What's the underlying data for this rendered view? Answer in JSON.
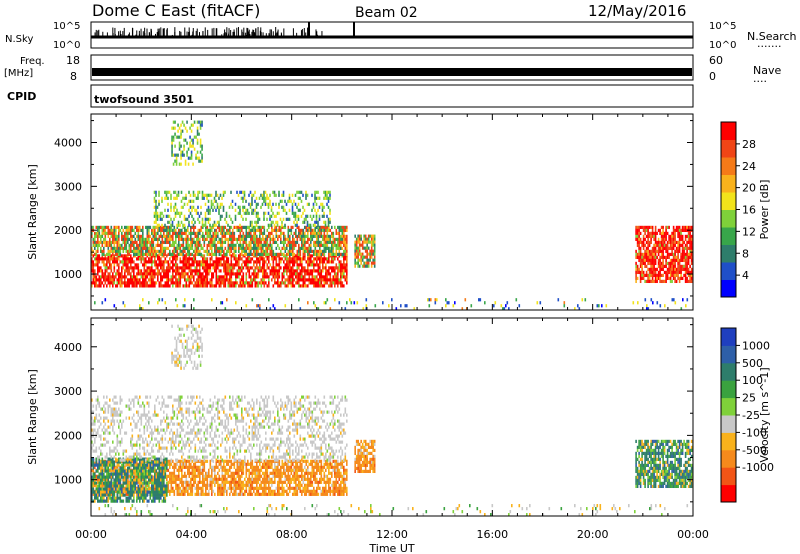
{
  "header": {
    "title": "Dome C East (fitACF)",
    "beam": "Beam 02",
    "date": "12/May/2016"
  },
  "strips": {
    "nsky_label": "N.Sky",
    "nsky_ticks": [
      "10^5",
      "10^0"
    ],
    "nsearch_label": "N.Search",
    "nsearch_ticks": [
      "10^5",
      "10^0"
    ],
    "nsearch_dots": ".......",
    "freq_label": "Freq.",
    "freq_unit": "[MHz]",
    "freq_ticks": [
      "18",
      "8"
    ],
    "nave_label": "Nave",
    "nave_ticks": [
      "60",
      "0"
    ],
    "nave_dots": "....",
    "cpid_label": "CPID",
    "cpid_value": "twofsound 3501"
  },
  "chart_data": [
    {
      "type": "heatmap",
      "name": "power-panel",
      "ylabel": "Slant Range [km]",
      "xlabel": "Time UT",
      "x_ticks": [
        "00:00",
        "04:00",
        "08:00",
        "12:00",
        "16:00",
        "20:00",
        "00:00"
      ],
      "x_range_hours": [
        0,
        24
      ],
      "y_ticks": [
        1000,
        2000,
        3000,
        4000
      ],
      "ylim": [
        180,
        4650
      ],
      "colorbar": {
        "label": "Power [dB]",
        "range": [
          0,
          32
        ],
        "ticks": [
          "4",
          "8",
          "12",
          "16",
          "20",
          "24",
          "28"
        ],
        "colors": [
          "#0000ff",
          "#1f4fc8",
          "#2e7d6b",
          "#38a64a",
          "#7fd13a",
          "#f2e31b",
          "#f9b21c",
          "#f57a18",
          "#f04516",
          "#ff0000"
        ]
      },
      "regions": [
        {
          "t0": 0.0,
          "t1": 10.2,
          "r0": 700,
          "r1": 1450,
          "level": "high"
        },
        {
          "t0": 0.0,
          "t1": 10.2,
          "r0": 1450,
          "r1": 2100,
          "level": "mid"
        },
        {
          "t0": 2.5,
          "t1": 9.5,
          "r0": 2100,
          "r1": 2900,
          "level": "low"
        },
        {
          "t0": 10.5,
          "t1": 11.3,
          "r0": 1200,
          "r1": 1900,
          "level": "mid"
        },
        {
          "t0": 21.7,
          "t1": 24.0,
          "r0": 850,
          "r1": 2100,
          "level": "high"
        },
        {
          "t0": 3.2,
          "t1": 4.4,
          "r0": 3500,
          "r1": 4500,
          "level": "low"
        },
        {
          "t0": 0.0,
          "t1": 24.0,
          "r0": 200,
          "r1": 450,
          "level": "sparse"
        }
      ]
    },
    {
      "type": "heatmap",
      "name": "velocity-panel",
      "ylabel": "Slant Range [km]",
      "xlabel": "Time UT",
      "x_ticks": [
        "00:00",
        "04:00",
        "08:00",
        "12:00",
        "16:00",
        "20:00",
        "00:00"
      ],
      "x_range_hours": [
        0,
        24
      ],
      "y_ticks": [
        1000,
        2000,
        3000,
        4000
      ],
      "ylim": [
        180,
        4650
      ],
      "colorbar": {
        "label": "Velocity [m s^-1]",
        "ticks": [
          "1000",
          "500",
          "100",
          "25",
          "-25",
          "-100",
          "-500",
          "-1000"
        ],
        "colors": [
          "#1f3fbf",
          "#2e5fa8",
          "#2e7d6b",
          "#3aa23f",
          "#7fd13a",
          "#c8c8c8",
          "#f9b21c",
          "#f58a1c",
          "#f25516",
          "#ff0000"
        ]
      },
      "regions": [
        {
          "t0": 0.0,
          "t1": 10.2,
          "r0": 700,
          "r1": 1450,
          "class": "negative"
        },
        {
          "t0": 0.0,
          "t1": 3.0,
          "r0": 500,
          "r1": 1500,
          "class": "positive"
        },
        {
          "t0": 0.0,
          "t1": 10.2,
          "r0": 1450,
          "r1": 2900,
          "class": "ground"
        },
        {
          "t0": 10.5,
          "t1": 11.3,
          "r0": 1200,
          "r1": 1900,
          "class": "negative"
        },
        {
          "t0": 21.7,
          "t1": 24.0,
          "r0": 850,
          "r1": 1900,
          "class": "positive"
        },
        {
          "t0": 3.2,
          "t1": 4.4,
          "r0": 3500,
          "r1": 4500,
          "class": "ground"
        },
        {
          "t0": 0.0,
          "t1": 24.0,
          "r0": 200,
          "r1": 450,
          "class": "sparse"
        }
      ]
    }
  ]
}
